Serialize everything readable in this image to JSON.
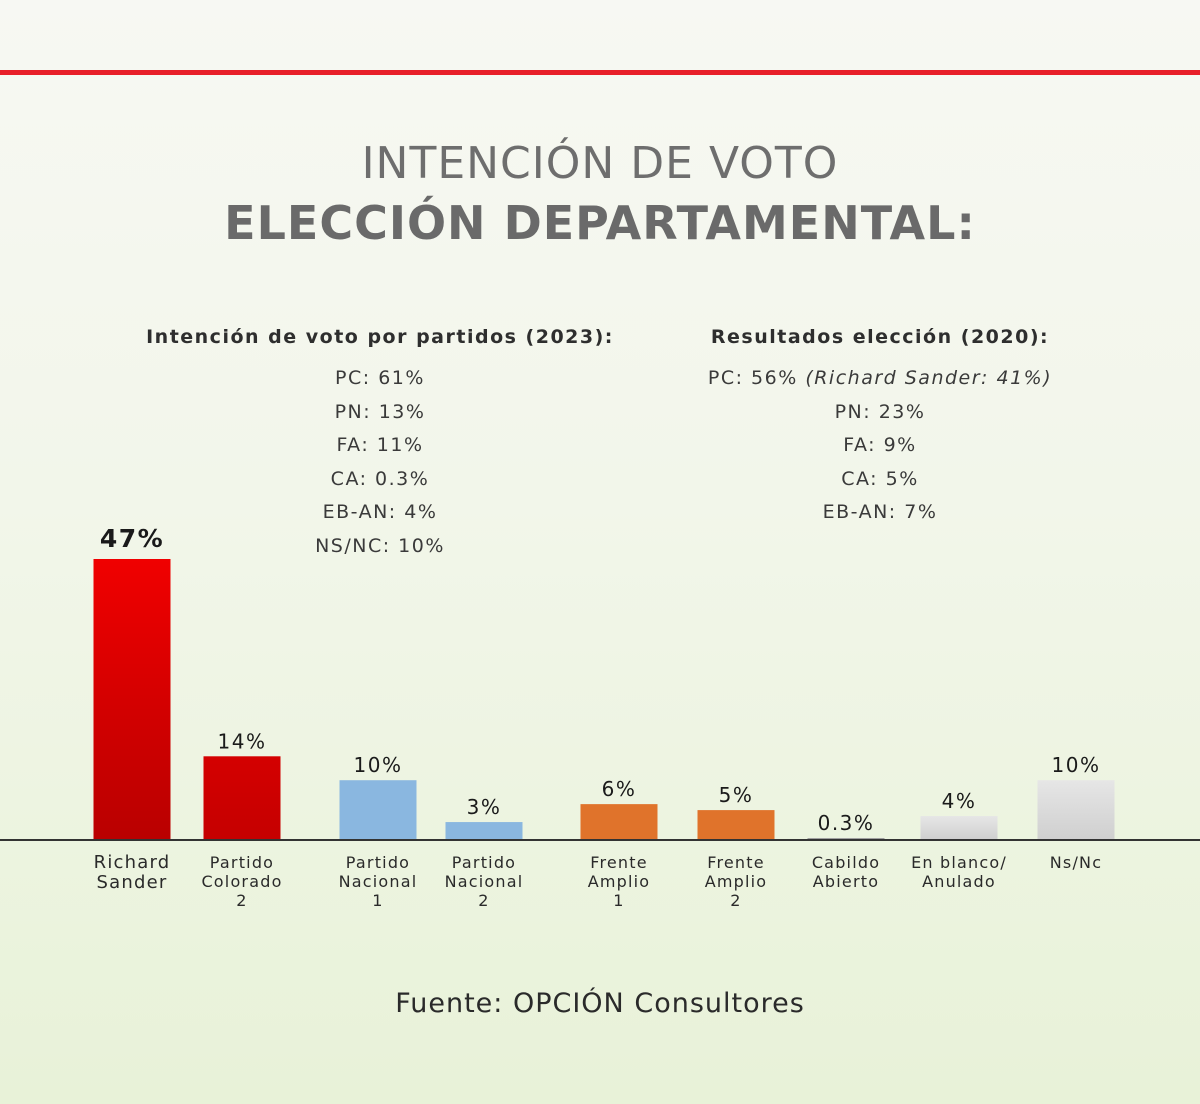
{
  "header": {
    "title_line1": "INTENCIÓN DE VOTO",
    "title_line2": "ELECCIÓN DEPARTAMENTAL:"
  },
  "panel_2023": {
    "heading": "Intención de voto por partidos (2023):",
    "lines": [
      "PC: 61%",
      "PN: 13%",
      "FA: 11%",
      "CA: 0.3%",
      "EB-AN: 4%",
      "NS/NC: 10%"
    ]
  },
  "panel_2020": {
    "heading": "Resultados elección (2020):",
    "lines": [
      "PC: 56%",
      "PN: 23%",
      "FA: 9%",
      "CA: 5%",
      "EB-AN: 7%"
    ],
    "first_line_note": "(Richard Sander: 41%)"
  },
  "chart_data": {
    "type": "bar",
    "categories": [
      [
        "Richard",
        "Sander"
      ],
      [
        "Partido",
        "Colorado",
        "2"
      ],
      [
        "Partido",
        "Nacional",
        "1"
      ],
      [
        "Partido",
        "Nacional",
        "2"
      ],
      [
        "Frente",
        "Amplio",
        "1"
      ],
      [
        "Frente",
        "Amplio",
        "2"
      ],
      [
        "Cabildo",
        "Abierto"
      ],
      [
        "En blanco/",
        "Anulado"
      ],
      [
        "Ns/Nc"
      ]
    ],
    "values": [
      47,
      14,
      10,
      3,
      6,
      5,
      0.3,
      4,
      10
    ],
    "data_labels": [
      "47%",
      "14%",
      "10%",
      "3%",
      "6%",
      "5%",
      "0.3%",
      "4%",
      "10%"
    ],
    "colors": [
      [
        "#f00000",
        "#b90000"
      ],
      [
        "#d40000",
        "#c50000"
      ],
      [
        "#8ab7e0",
        "#8ab7e0"
      ],
      [
        "#8ab7e0",
        "#8ab7e0"
      ],
      [
        "#e0732b",
        "#e0732b"
      ],
      [
        "#e0732b",
        "#e0732b"
      ],
      [
        "#a0a0a0",
        "#a0a0a0"
      ],
      [
        "#e6e6e6",
        "#cfcfcf"
      ],
      [
        "#e6e6e6",
        "#cfcfcf"
      ]
    ],
    "ylim": [
      0,
      47
    ],
    "grid": false,
    "legend": "none"
  },
  "footer": {
    "source": "Fuente: OPCIÓN Consultores"
  }
}
